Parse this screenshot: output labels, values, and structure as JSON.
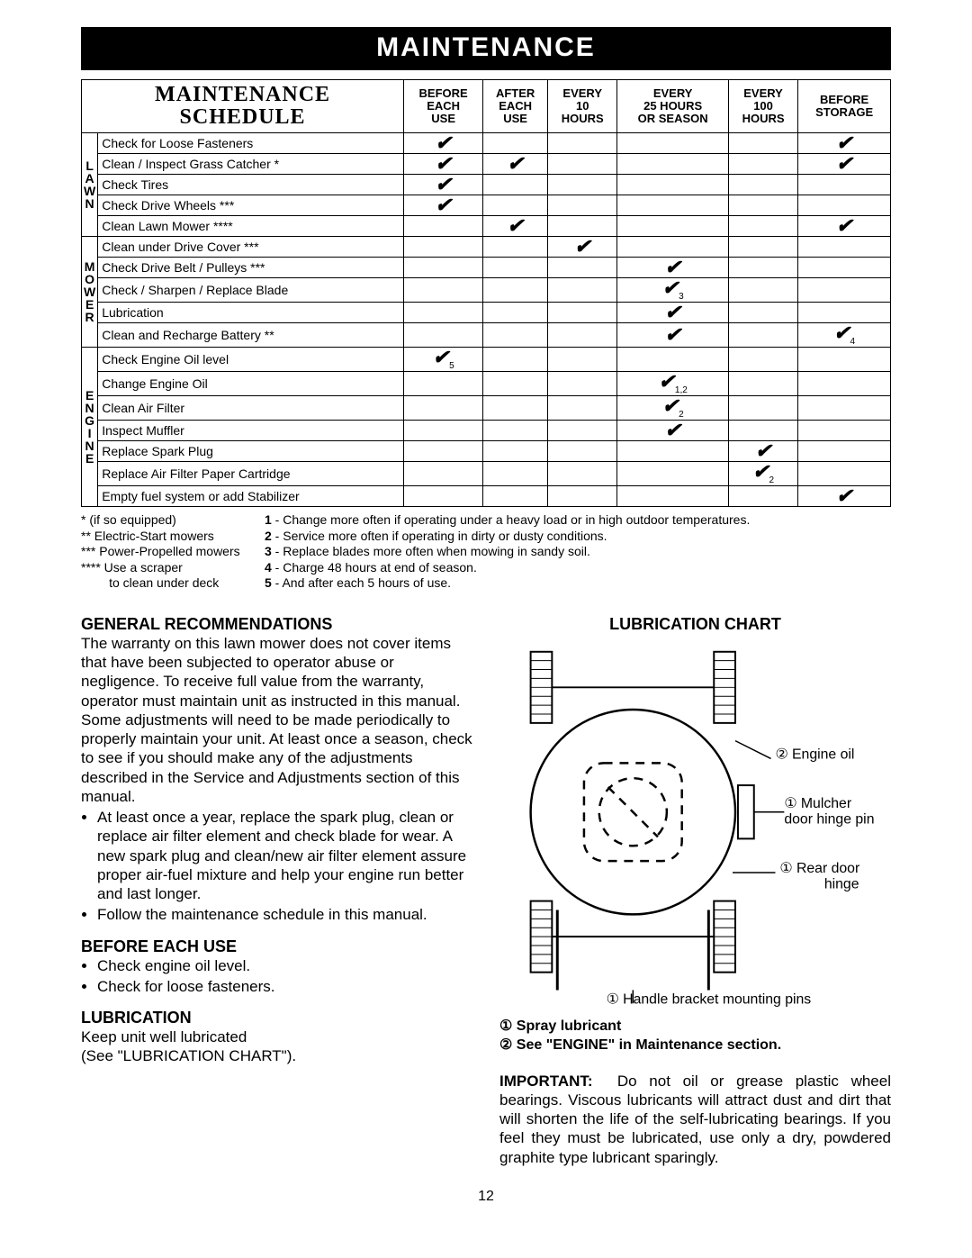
{
  "banner": "MAINTENANCE",
  "table": {
    "title_line1": "MAINTENANCE",
    "title_line2": "SCHEDULE",
    "columns": [
      "BEFORE\nEACH\nUSE",
      "AFTER\nEACH\nUSE",
      "EVERY\n10\nHOURS",
      "EVERY\n25 HOURS\nOR SEASON",
      "EVERY\n100\nHOURS",
      "BEFORE\nSTORAGE"
    ],
    "groups": [
      {
        "label": "LAWN",
        "rows": [
          {
            "task": "Check for Loose Fasteners",
            "checks": [
              "✔",
              "",
              "",
              "",
              "",
              "✔"
            ]
          },
          {
            "task": "Clean / Inspect Grass Catcher *",
            "checks": [
              "✔",
              "✔",
              "",
              "",
              "",
              "✔"
            ]
          },
          {
            "task": "Check Tires",
            "checks": [
              "✔",
              "",
              "",
              "",
              "",
              ""
            ]
          },
          {
            "task": "Check Drive Wheels ***",
            "checks": [
              "✔",
              "",
              "",
              "",
              "",
              ""
            ]
          },
          {
            "task": "Clean Lawn Mower ****",
            "checks": [
              "",
              "✔",
              "",
              "",
              "",
              "✔"
            ]
          }
        ]
      },
      {
        "label": "MOWER",
        "rows": [
          {
            "task": "Clean under Drive Cover ***",
            "checks": [
              "",
              "",
              "✔",
              "",
              "",
              ""
            ]
          },
          {
            "task": "Check Drive Belt / Pulleys ***",
            "checks": [
              "",
              "",
              "",
              "✔",
              "",
              ""
            ]
          },
          {
            "task": "Check / Sharpen / Replace Blade",
            "checks": [
              "",
              "",
              "",
              "✔3",
              "",
              ""
            ]
          },
          {
            "task": "Lubrication",
            "checks": [
              "",
              "",
              "",
              "✔",
              "",
              ""
            ]
          },
          {
            "task": "Clean and Recharge Battery **",
            "checks": [
              "",
              "",
              "",
              "✔",
              "",
              "✔4"
            ]
          }
        ]
      },
      {
        "label": "ENGINE",
        "rows": [
          {
            "task": "Check Engine Oil level",
            "checks": [
              "✔5",
              "",
              "",
              "",
              "",
              ""
            ]
          },
          {
            "task": "Change Engine Oil",
            "checks": [
              "",
              "",
              "",
              "✔1,2",
              "",
              ""
            ]
          },
          {
            "task": "Clean Air Filter",
            "checks": [
              "",
              "",
              "",
              "✔2",
              "",
              ""
            ]
          },
          {
            "task": "Inspect Muffler",
            "checks": [
              "",
              "",
              "",
              "✔",
              "",
              ""
            ]
          },
          {
            "task": "Replace Spark Plug",
            "checks": [
              "",
              "",
              "",
              "",
              "✔",
              ""
            ]
          },
          {
            "task": "Replace Air Filter Paper Cartridge",
            "checks": [
              "",
              "",
              "",
              "",
              "✔2",
              ""
            ]
          },
          {
            "task": "Empty fuel system or add Stabilizer",
            "checks": [
              "",
              "",
              "",
              "",
              "",
              "✔"
            ]
          }
        ]
      }
    ]
  },
  "footnotes_left": [
    "* (if so equipped)",
    "** Electric-Start mowers",
    "*** Power-Propelled mowers",
    "**** Use a scraper",
    "        to clean under deck"
  ],
  "footnotes_right": [
    "1 - Change more often if operating under a heavy load or in high outdoor temperatures.",
    "2 - Service more often if operating in dirty or dusty conditions.",
    "3 - Replace blades more often when mowing in sandy soil.",
    "4 - Charge 48 hours at end of season.",
    "5 - And after each 5 hours of use."
  ],
  "general": {
    "heading": "GENERAL RECOMMENDATIONS",
    "para": "The warranty on this lawn mower does not cover items that have been subjected to operator abuse or negligence. To receive full value from the warranty, operator must maintain unit as instructed in this manual. Some adjustments will need to be made periodically to properly maintain your unit. At least once a season, check to see if you should make any of the adjustments described in the Service and Adjustments section of this manual.",
    "bullets": [
      "At least once a year, replace the spark plug, clean or replace air filter element and check blade for wear. A new spark plug and clean/new air filter element assure proper air-fuel mixture and help your engine run better and last longer.",
      "Follow the maintenance schedule in this manual."
    ]
  },
  "before_each_use": {
    "heading": "BEFORE EACH USE",
    "bullets": [
      "Check engine oil level.",
      "Check for loose fasteners."
    ]
  },
  "lubrication_left": {
    "heading": "LUBRICATION",
    "text": "Keep unit well lubricated\n(See \"LUBRICATION CHART\")."
  },
  "chart": {
    "heading": "LUBRICATION CHART",
    "callouts": {
      "engine_oil": "② Engine oil",
      "mulcher": "① Mulcher door hinge pin",
      "rear_door": "① Rear door hinge",
      "handle": "① Handle bracket mounting pins"
    },
    "legend_line1": "① Spray lubricant",
    "legend_line2": "② See \"ENGINE\" in Maintenance section."
  },
  "important": {
    "label": "IMPORTANT:",
    "text": "Do not oil or grease plastic wheel bearings. Viscous lubricants will attract dust and dirt that will shorten the life of the self-lubricating bearings. If you feel they must be lubricated, use only a dry, powdered graphite type lubricant sparingly."
  },
  "page_number": "12",
  "style": {
    "banner_bg": "#000000",
    "banner_fg": "#ffffff",
    "border_color": "#000000",
    "check_color": "#000000"
  }
}
